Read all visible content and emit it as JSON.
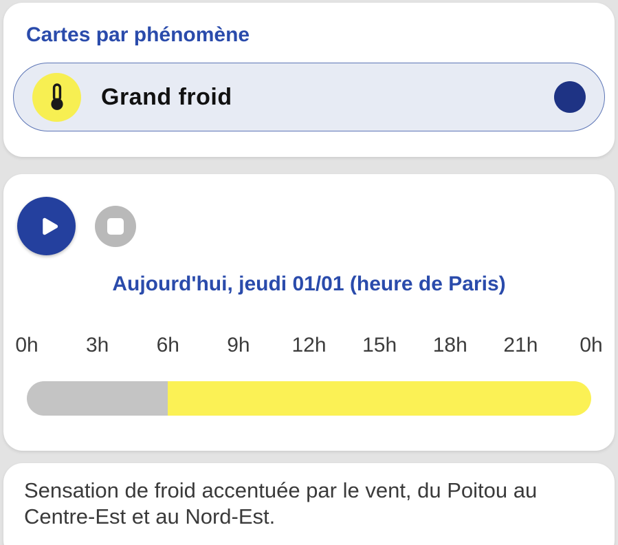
{
  "phenomena_card": {
    "title": "Cartes par phénomène",
    "selected": {
      "label": "Grand froid",
      "icon": "thermometer-icon",
      "icon_bg": "#f7ef52",
      "indicator_color": "#1e3384"
    }
  },
  "timeline_card": {
    "controls": {
      "play": "play-button",
      "stop": "stop-button"
    },
    "date_label": "Aujourd'hui, jeudi 01/01 (heure de Paris)",
    "hour_ticks": [
      "0h",
      "3h",
      "6h",
      "9h",
      "12h",
      "15h",
      "18h",
      "21h",
      "0h"
    ],
    "progress": {
      "elapsed_fraction": 0.25,
      "elapsed_color": "#c4c4c4",
      "remaining_color": "#fbf155"
    }
  },
  "bulletin_card": {
    "text": "Sensation de froid accentuée par le vent, du Poitou au Centre-Est et au Nord-Est."
  },
  "colors": {
    "page_bg": "#e3e3e3",
    "card_bg": "#ffffff",
    "accent_blue": "#2a4bab",
    "navy": "#1e3384",
    "play_blue": "#24409e",
    "pill_bg": "#e7ebf4",
    "pill_border": "#5b74b5",
    "icon_yellow": "#f7ef52",
    "bar_yellow": "#fbf155",
    "bar_gray": "#c4c4c4",
    "stop_gray": "#b9b9b9"
  }
}
